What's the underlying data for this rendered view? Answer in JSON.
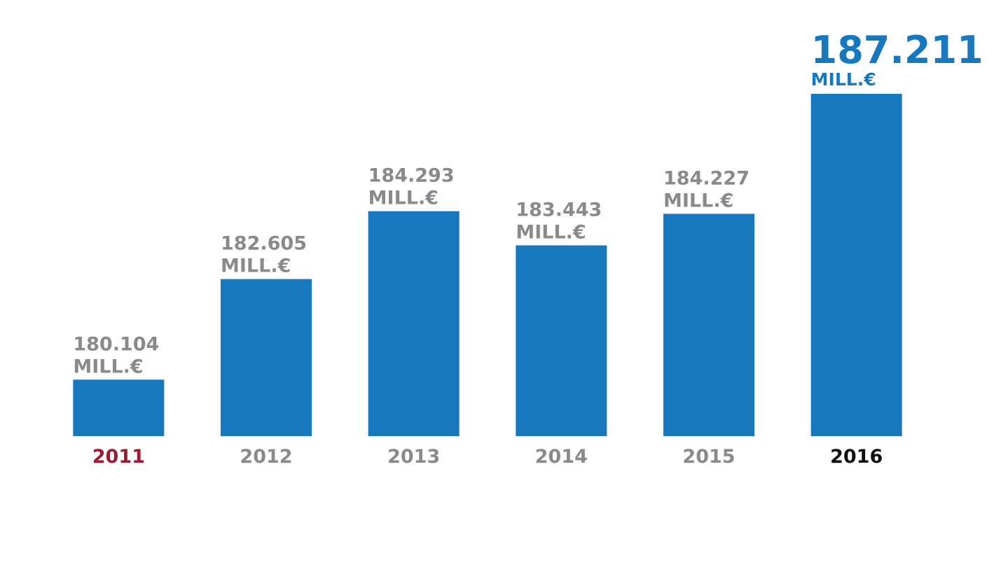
{
  "chart_data": {
    "type": "bar",
    "categories": [
      "2011",
      "2012",
      "2013",
      "2014",
      "2015",
      "2016"
    ],
    "category_colors": [
      "#9b1b30",
      "#8a8a8a",
      "#8a8a8a",
      "#8a8a8a",
      "#8a8a8a",
      "#111111"
    ],
    "values": [
      180104,
      182605,
      184293,
      183443,
      184227,
      187211
    ],
    "value_labels": [
      "180.104",
      "182.605",
      "184.293",
      "183.443",
      "184.227",
      "187.211"
    ],
    "value_unit": "MILL.€",
    "color": "#1878be",
    "label_color": "#8a8a8a",
    "highlight_index": 5,
    "highlight_color": "#1878be",
    "ylim": [
      178700,
      188500
    ]
  }
}
